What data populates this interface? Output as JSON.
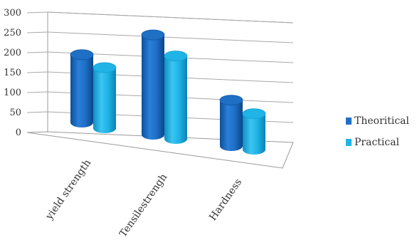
{
  "chart_data": {
    "type": "bar",
    "style": "3d-cylinder",
    "categories": [
      "yield strength",
      "Tensilestrengh",
      "Hardness"
    ],
    "series": [
      {
        "name": "Theoritical",
        "values": [
          170,
          250,
          115
        ],
        "color": "#1f6fc5"
      },
      {
        "name": "Practical",
        "values": [
          152,
          208,
          90
        ],
        "color": "#1fb3e6"
      }
    ],
    "yticks": [
      "0",
      "50",
      "100",
      "150",
      "200",
      "250",
      "300"
    ],
    "ylim": [
      0,
      300
    ],
    "grid": true,
    "legend": "right"
  }
}
